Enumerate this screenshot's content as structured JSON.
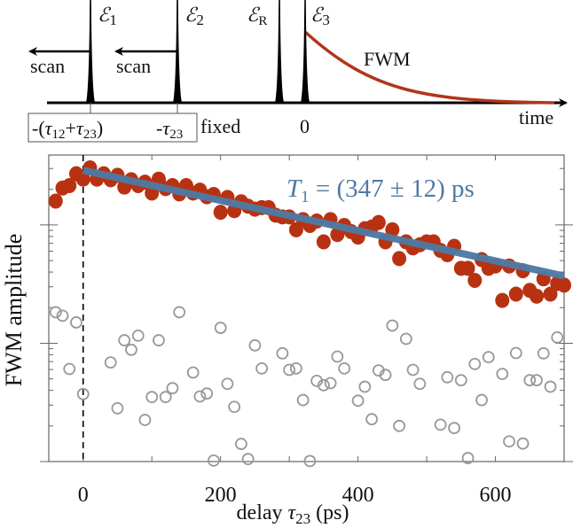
{
  "diagram": {
    "pulses": [
      {
        "base": "ℰ",
        "sub": "1"
      },
      {
        "base": "ℰ",
        "sub": "2"
      },
      {
        "base": "ℰ",
        "sub": "R"
      },
      {
        "base": "ℰ",
        "sub": "3"
      }
    ],
    "scan_label": "scan",
    "fwm_label": "FWM",
    "time_label": "time",
    "delay1": {
      "pre": "-(",
      "t1": "τ",
      "s1": "12",
      "plus": "+",
      "t2": "τ",
      "s2": "23",
      "post": ")"
    },
    "delay2": {
      "pre": "-",
      "t": "τ",
      "s": "23"
    },
    "fixed_label": "fixed",
    "zero_label": "0",
    "fwm_color": "#b0361a"
  },
  "chart_data": {
    "type": "scatter",
    "xlabel": {
      "pre": "delay ",
      "t": "τ",
      "s": "23",
      "post": " (ps)"
    },
    "ylabel": "FWM amplitude",
    "xlim": [
      -50,
      700
    ],
    "ylim": [
      1,
      390
    ],
    "yscale": "log",
    "xticks": [
      0,
      200,
      400,
      600
    ],
    "fit_annotation": {
      "lhs": "T",
      "sub": "1",
      "rhs": " = (347 ± 12) ps"
    },
    "fit": {
      "T1_ps": 347,
      "T1_err_ps": 12,
      "x": [
        0,
        700
      ],
      "y": [
        290,
        37
      ],
      "color": "#4f7aa3"
    },
    "signal": {
      "color": "#b83212",
      "x": [
        -40,
        -30,
        -20,
        -10,
        0,
        10,
        20,
        30,
        40,
        50,
        60,
        70,
        80,
        90,
        100,
        110,
        120,
        130,
        140,
        150,
        160,
        170,
        180,
        190,
        200,
        210,
        220,
        230,
        240,
        250,
        260,
        270,
        280,
        290,
        300,
        310,
        320,
        330,
        340,
        350,
        360,
        370,
        380,
        390,
        400,
        410,
        420,
        430,
        440,
        450,
        460,
        470,
        480,
        490,
        500,
        510,
        520,
        530,
        540,
        550,
        560,
        570,
        580,
        590,
        600,
        610,
        620,
        630,
        640,
        650,
        660,
        670,
        680,
        690,
        700
      ],
      "y": [
        159,
        205,
        215,
        271,
        244,
        304,
        244,
        271,
        241,
        263,
        209,
        241,
        215,
        230,
        186,
        244,
        203,
        215,
        183,
        215,
        186,
        197,
        173,
        181,
        128,
        171,
        132,
        157,
        144,
        136,
        140,
        140,
        121,
        117,
        117,
        91,
        111,
        99,
        108,
        72,
        111,
        83,
        99,
        88,
        79,
        93,
        96,
        105,
        72,
        91,
        52,
        72,
        64,
        68,
        72,
        72,
        61,
        56,
        66,
        43,
        43,
        34,
        51,
        43,
        45,
        23,
        45,
        26,
        41,
        28,
        25,
        35,
        26,
        32,
        31
      ]
    },
    "background": {
      "color": "#999999",
      "x": [
        -40,
        -30,
        -20,
        -10,
        0,
        40,
        50,
        60,
        70,
        80,
        90,
        100,
        110,
        120,
        130,
        140,
        160,
        170,
        180,
        190,
        200,
        210,
        220,
        230,
        240,
        250,
        260,
        290,
        300,
        310,
        320,
        330,
        340,
        350,
        360,
        370,
        380,
        400,
        410,
        420,
        430,
        440,
        450,
        460,
        470,
        480,
        490,
        520,
        530,
        540,
        550,
        560,
        570,
        580,
        590,
        610,
        620,
        630,
        640,
        650,
        660,
        670,
        680,
        690
      ],
      "y": [
        18.3,
        17.1,
        6.06,
        15.0,
        3.72,
        6.88,
        2.82,
        10.6,
        8.81,
        11.6,
        2.25,
        3.51,
        10.6,
        3.51,
        4.17,
        18.3,
        5.66,
        3.55,
        3.76,
        1.02,
        13.5,
        4.54,
        2.9,
        1.41,
        1.05,
        9.6,
        6.13,
        8.22,
        5.96,
        6.13,
        3.31,
        1.01,
        4.81,
        4.42,
        4.6,
        7.72,
        6.13,
        3.27,
        4.29,
        2.28,
        5.89,
        5.4,
        14.1,
        2.0,
        10.9,
        5.96,
        4.54,
        2.05,
        5.16,
        1.92,
        4.87,
        1.07,
        6.68,
        3.31,
        7.63,
        5.5,
        1.48,
        8.27,
        1.42,
        4.87,
        4.87,
        8.22,
        4.29,
        11.2
      ]
    }
  }
}
